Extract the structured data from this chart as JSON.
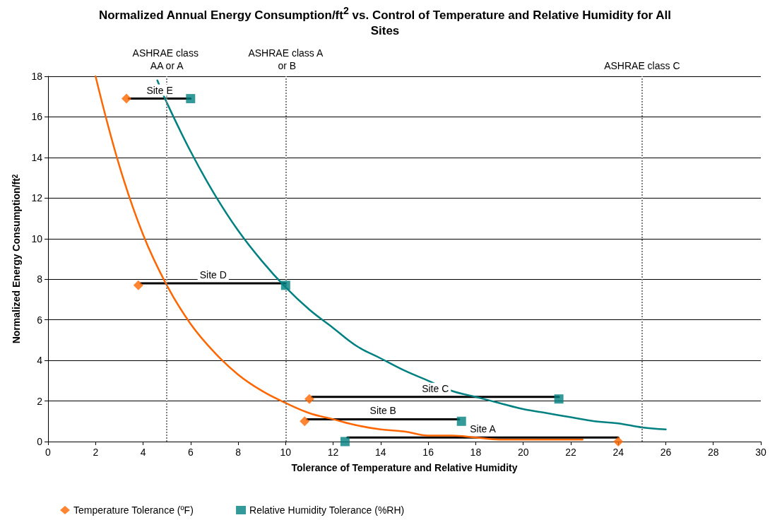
{
  "chart_data": {
    "type": "scatter",
    "title": "Normalized Annual Energy Consumption/ft$^{2}$ vs. Control of Temperature and Relative Humidity for All Sites",
    "xlabel": "Tolerance of Temperature and Relative Humidity",
    "ylabel": "Normalized Energy Consumption/ft$^{2}$",
    "xlim": [
      0,
      30
    ],
    "xticks": [
      0,
      2,
      4,
      6,
      8,
      10,
      12,
      14,
      16,
      18,
      20,
      22,
      24,
      26,
      28,
      30
    ],
    "ylim": [
      0,
      18
    ],
    "yticks": [
      0,
      2,
      4,
      6,
      8,
      10,
      12,
      14,
      16,
      18
    ],
    "grid": "y",
    "legend": "bottom",
    "series": [
      {
        "name": "Temperature Tolerance (ºF)",
        "color": "#ff6600",
        "marker": "diamond",
        "x": [
          3.3,
          3.8,
          11.0,
          10.8,
          24.0
        ],
        "values": [
          16.9,
          7.7,
          2.1,
          1.0,
          0.0
        ]
      },
      {
        "name": "Relative Humidity Tolerance (%RH)",
        "color": "#008080",
        "marker": "square",
        "x": [
          6.0,
          10.0,
          21.5,
          17.4,
          12.5
        ],
        "values": [
          16.9,
          7.7,
          2.1,
          1.0,
          0.0
        ]
      },
      {
        "type": "line",
        "name": "Site E",
        "color": "#000000",
        "marker": "none",
        "x": [
          3.4,
          6.0
        ],
        "values": [
          16.9,
          16.9
        ]
      },
      {
        "type": "line",
        "name": "Site D",
        "color": "#000000",
        "marker": "none",
        "x": [
          3.9,
          10.0
        ],
        "values": [
          7.8,
          7.8
        ]
      },
      {
        "type": "line",
        "name": "Site C",
        "color": "#000000",
        "marker": "none",
        "x": [
          11.1,
          21.5
        ],
        "values": [
          2.2,
          2.2
        ]
      },
      {
        "type": "line",
        "name": "Site B",
        "color": "#000000",
        "marker": "none",
        "x": [
          10.9,
          17.3
        ],
        "values": [
          1.1,
          1.1
        ]
      },
      {
        "type": "line",
        "name": "Site A",
        "color": "#000000",
        "marker": "none",
        "x": [
          12.6,
          24.0
        ],
        "values": [
          0.2,
          0.2
        ]
      },
      {
        "type": "line",
        "color": "#ff6600",
        "marker": "none",
        "x": [
          2,
          3,
          4,
          5,
          6,
          7,
          8,
          9,
          10,
          11,
          12,
          13,
          14,
          15,
          16,
          17,
          18,
          19,
          20,
          21,
          22.5
        ],
        "values": [
          18,
          13.6,
          10.2,
          7.7,
          5.8,
          4.4,
          3.3,
          2.5,
          1.9,
          1.4,
          1.1,
          0.8,
          0.6,
          0.5,
          0.3,
          0.3,
          0.2,
          0.1,
          0.1,
          0.1,
          0.1
        ]
      },
      {
        "type": "line",
        "color": "#008080",
        "marker": "none",
        "x": [
          4.6,
          5,
          6,
          7,
          8,
          9,
          10,
          11,
          12,
          13,
          14,
          15,
          16,
          17,
          18,
          19,
          20,
          21,
          22,
          23,
          24,
          25,
          26
        ],
        "values": [
          17.8,
          16.7,
          14.3,
          12.2,
          10.4,
          8.9,
          7.6,
          6.5,
          5.6,
          4.7,
          4.1,
          3.5,
          3.0,
          2.5,
          2.2,
          1.9,
          1.6,
          1.4,
          1.2,
          1.0,
          0.9,
          0.7,
          0.6
        ]
      }
    ],
    "ref_lines": [
      {
        "axis": "x",
        "value": 5,
        "label": "ASHRAE class AA or A",
        "color": "#808080",
        "line_style": "dotted"
      },
      {
        "axis": "x",
        "value": 10,
        "label": "ASHRAE class A or B",
        "color": "#808080",
        "line_style": "dotted"
      },
      {
        "axis": "x",
        "value": 25,
        "label": "ASHRAE class C",
        "color": "#808080",
        "line_style": "dotted"
      }
    ]
  }
}
